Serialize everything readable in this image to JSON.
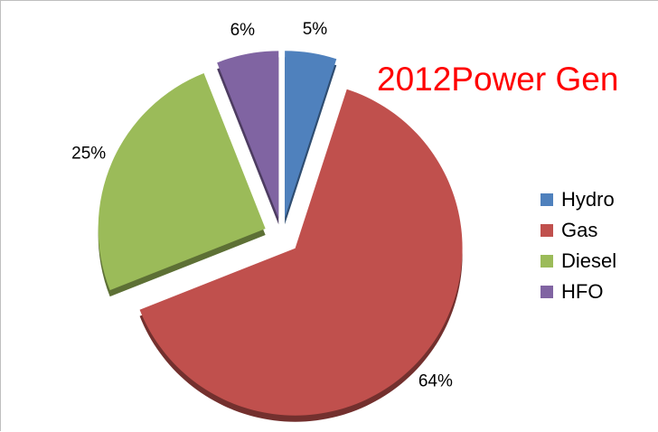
{
  "chart_data": {
    "type": "pie",
    "title": "2012Power Gen",
    "categories": [
      "Hydro",
      "Gas",
      "Diesel",
      "HFO"
    ],
    "values": [
      5,
      64,
      25,
      6
    ],
    "value_labels": [
      "5%",
      "64%",
      "25%",
      "6%"
    ],
    "colors": [
      "#4f81bd",
      "#c0504d",
      "#9bbb59",
      "#8064a2"
    ],
    "legend_position": "right",
    "exploded": true
  }
}
